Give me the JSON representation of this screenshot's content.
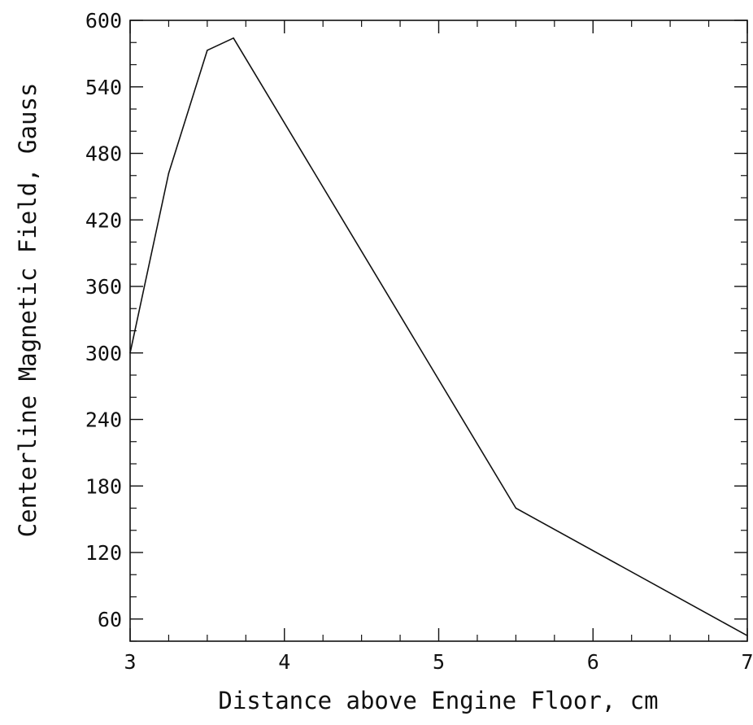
{
  "chart_data": {
    "type": "line",
    "title": "",
    "xlabel": "Distance above Engine Floor, cm",
    "ylabel": "Centerline Magnetic Field, Gauss",
    "xlim": [
      3,
      7
    ],
    "ylim": [
      40,
      600
    ],
    "x_ticks": [
      3,
      4,
      5,
      6,
      7
    ],
    "x_tick_labels": [
      "3",
      "4",
      "5",
      "6",
      "7"
    ],
    "x_minor_step": 0.25,
    "y_ticks": [
      60,
      120,
      180,
      240,
      300,
      360,
      420,
      480,
      540,
      600
    ],
    "y_tick_labels": [
      "60",
      "120",
      "180",
      "240",
      "300",
      "360",
      "420",
      "480",
      "540",
      "600"
    ],
    "y_minor_step": 20,
    "grid": false,
    "line_color": "#111111",
    "series": [
      {
        "x": [
          3.0,
          3.25,
          3.5,
          3.67,
          5.5,
          7.0
        ],
        "y": [
          300,
          462,
          573,
          584,
          160,
          45
        ]
      }
    ]
  }
}
